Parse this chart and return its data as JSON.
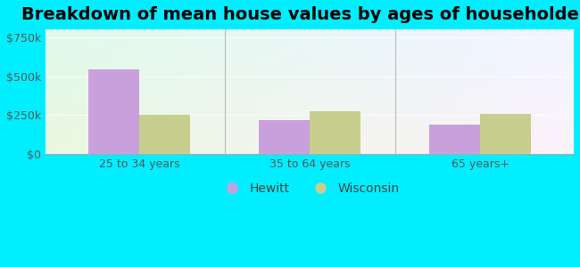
{
  "title": "Breakdown of mean house values by ages of householders",
  "categories": [
    "25 to 34 years",
    "35 to 64 years",
    "65 years+"
  ],
  "hewitt_values": [
    545000,
    215000,
    190000
  ],
  "wisconsin_values": [
    250000,
    275000,
    260000
  ],
  "hewitt_color": "#c9a0dc",
  "wisconsin_color": "#c8cf8e",
  "yticks": [
    0,
    250000,
    500000,
    750000
  ],
  "ytick_labels": [
    "$0",
    "$250k",
    "$500k",
    "$750k"
  ],
  "ylim": [
    0,
    800000
  ],
  "bar_width": 0.3,
  "legend_hewitt": "Hewitt",
  "legend_wisconsin": "Wisconsin",
  "bg_outer": "#00eeff",
  "title_fontsize": 14,
  "tick_fontsize": 9,
  "legend_fontsize": 10
}
